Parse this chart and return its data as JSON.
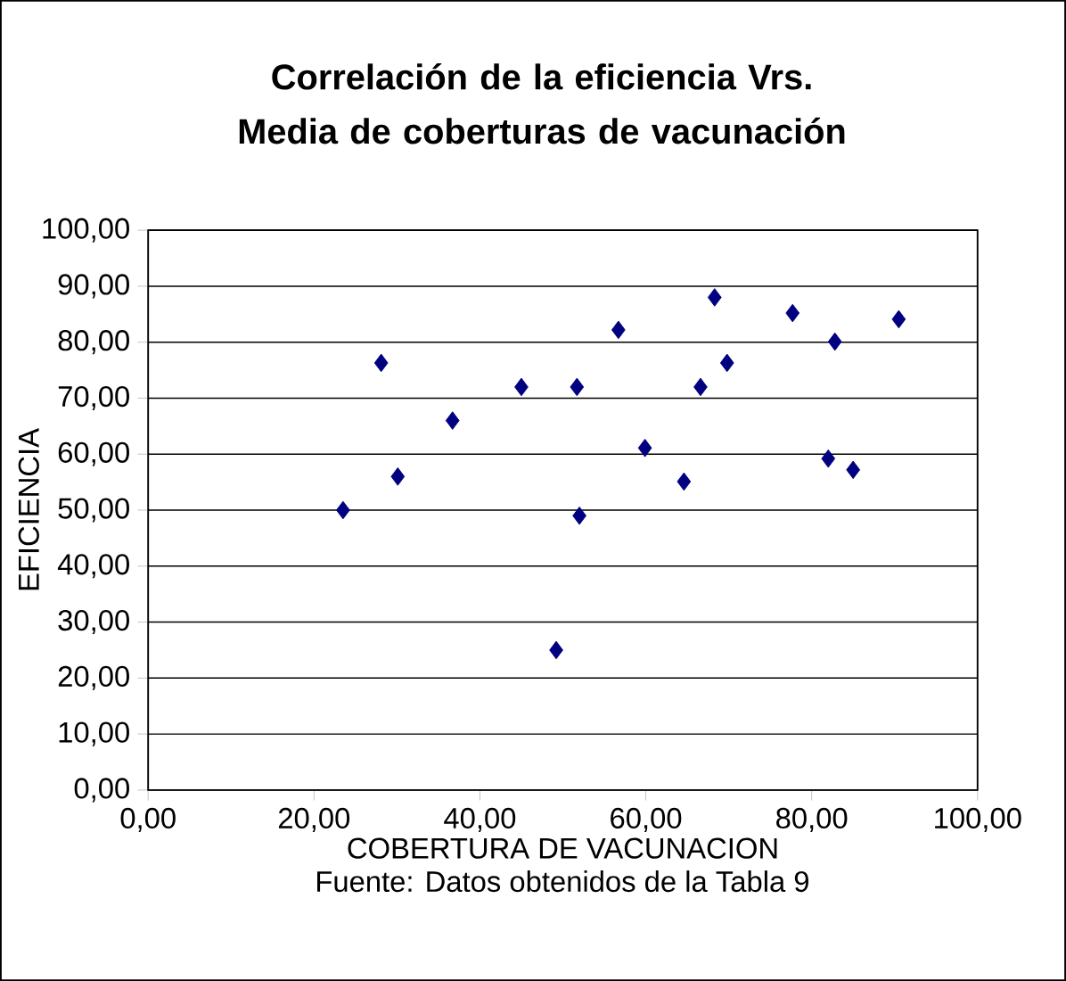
{
  "chart_data": {
    "type": "scatter",
    "title": "Correlación de la eficiencia Vrs. Media de coberturas de vacunación",
    "xlabel": "COBERTURA DE VACUNACION",
    "ylabel": "EFICIENCIA",
    "annotations": [
      "Fuente: Datos obtenidos de la Tabla 9"
    ],
    "x": [
      23.5,
      28.1,
      30.1,
      36.7,
      45.0,
      49.2,
      51.7,
      52.0,
      56.7,
      59.9,
      64.6,
      66.6,
      68.3,
      69.8,
      77.7,
      82.0,
      82.8,
      85.0,
      90.5
    ],
    "values": [
      50,
      76.3,
      56,
      66,
      72,
      25,
      72,
      49,
      82.2,
      61.1,
      55.1,
      72,
      88,
      76.3,
      85.2,
      59.2,
      80.1,
      57.2,
      84.1
    ],
    "color": "#000080",
    "marker": "diamond",
    "grid": "y",
    "xlim": [
      0,
      100
    ],
    "ylim": [
      0,
      100
    ],
    "xticks": [
      {
        "value": 0,
        "label": "0,00"
      },
      {
        "value": 20,
        "label": "20,00"
      },
      {
        "value": 40,
        "label": "40,00"
      },
      {
        "value": 60,
        "label": "60,00"
      },
      {
        "value": 80,
        "label": "80,00"
      },
      {
        "value": 100,
        "label": "100,00"
      }
    ],
    "yticks": [
      {
        "value": 0,
        "label": "0,00"
      },
      {
        "value": 10,
        "label": "10,00"
      },
      {
        "value": 20,
        "label": "20,00"
      },
      {
        "value": 30,
        "label": "30,00"
      },
      {
        "value": 40,
        "label": "40,00"
      },
      {
        "value": 50,
        "label": "50,00"
      },
      {
        "value": 60,
        "label": "60,00"
      },
      {
        "value": 70,
        "label": "70,00"
      },
      {
        "value": 80,
        "label": "80,00"
      },
      {
        "value": 90,
        "label": "90,00"
      },
      {
        "value": 100,
        "label": "100,00"
      }
    ]
  }
}
